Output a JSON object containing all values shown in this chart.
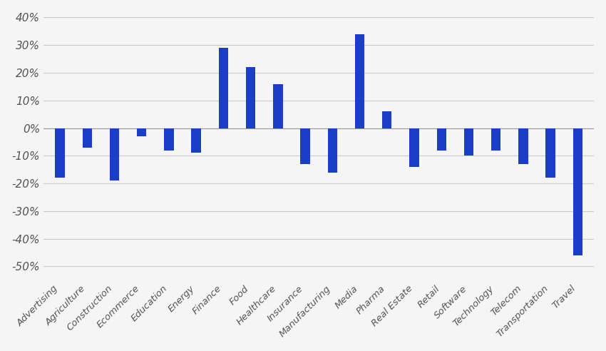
{
  "categories": [
    "Advertising",
    "Agriculture",
    "Construction",
    "Ecommerce",
    "Education",
    "Energy",
    "Finance",
    "Food",
    "Healthcare",
    "Insurance",
    "Manufacturing",
    "Media",
    "Pharma",
    "Real Estate",
    "Retail",
    "Software",
    "Technology",
    "Telecom",
    "Transportation",
    "Travel"
  ],
  "values": [
    -18,
    -7,
    -19,
    -3,
    -8,
    -9,
    29,
    22,
    16,
    -13,
    -16,
    34,
    6,
    -14,
    -8,
    -10,
    -8,
    -13,
    -18,
    -46
  ],
  "bar_color": "#1a3ec8",
  "ylim": [
    -55,
    42
  ],
  "yticks": [
    -50,
    -40,
    -30,
    -20,
    -10,
    0,
    10,
    20,
    30,
    40
  ],
  "ytick_labels": [
    "-50%",
    "-40%",
    "-30%",
    "-20%",
    "-10%",
    "0%",
    "10%",
    "20%",
    "30%",
    "40%"
  ],
  "background_color": "#f5f5f5",
  "grid_color": "#cccccc",
  "bar_width": 0.35
}
